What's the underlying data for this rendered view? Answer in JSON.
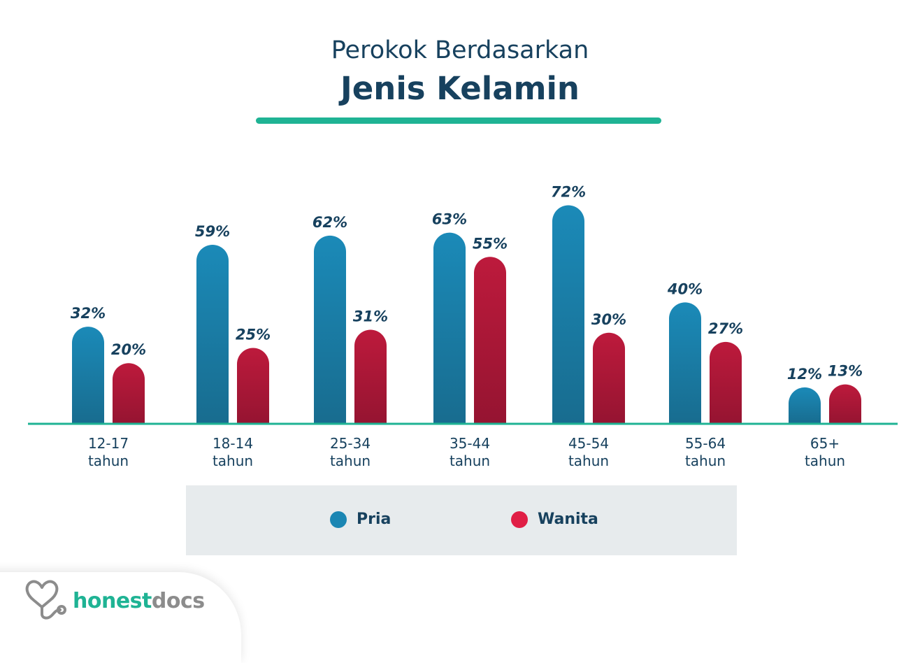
{
  "title_line1": "Perokok Berdasarkan",
  "title_line2": "Jenis Kelamin",
  "colors": {
    "title": "#17415e",
    "accent_rule": "#1fb394",
    "pria": "#1b86b3",
    "wanita": "#b5173a",
    "baseline": "#1fb394",
    "legend_bg": "#e7ebed"
  },
  "legend": {
    "pria_label": "Pria",
    "wanita_label": "Wanita"
  },
  "logo": {
    "brand_part1": "honest",
    "brand_part2": "docs",
    "icon": "stethoscope-heart-icon"
  },
  "chart_data": {
    "type": "bar",
    "categories": [
      "12-17 tahun",
      "18-14 tahun",
      "25-34 tahun",
      "35-44 tahun",
      "45-54 tahun",
      "55-64 tahun",
      "65+ tahun"
    ],
    "category_lines": [
      [
        "12-17",
        "tahun"
      ],
      [
        "18-14",
        "tahun"
      ],
      [
        "25-34",
        "tahun"
      ],
      [
        "35-44",
        "tahun"
      ],
      [
        "45-54",
        "tahun"
      ],
      [
        "55-64",
        "tahun"
      ],
      [
        "65+",
        "tahun"
      ]
    ],
    "series": [
      {
        "name": "Pria",
        "values": [
          32,
          59,
          62,
          63,
          72,
          40,
          12
        ],
        "labels": [
          "32%",
          "59%",
          "62%",
          "63%",
          "72%",
          "40%",
          "12%"
        ]
      },
      {
        "name": "Wanita",
        "values": [
          20,
          25,
          31,
          55,
          30,
          27,
          13
        ],
        "labels": [
          "20%",
          "25%",
          "31%",
          "55%",
          "30%",
          "27%",
          "13%"
        ]
      }
    ],
    "ylim": [
      0,
      100
    ],
    "unit": "%",
    "grid": false,
    "legend_position": "bottom"
  }
}
